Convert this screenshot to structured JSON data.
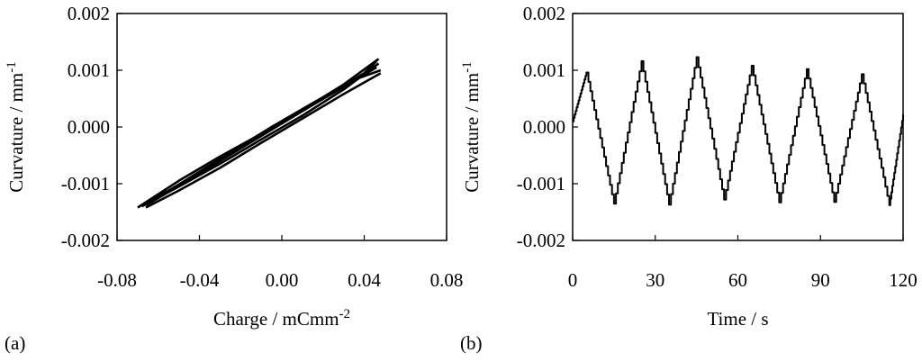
{
  "chart_data": [
    {
      "type": "line",
      "panel_label": "(a)",
      "title": "",
      "xlabel": {
        "main": "Charge / mCmm",
        "sup": "-2"
      },
      "ylabel": {
        "main": "Curvature / mm",
        "sup": "-1"
      },
      "xlim": [
        -0.08,
        0.08
      ],
      "ylim": [
        -0.002,
        0.002
      ],
      "xticks": [
        -0.08,
        -0.04,
        0.0,
        0.04,
        0.08
      ],
      "xtick_labels": [
        "-0.08",
        "-0.04",
        "0.00",
        "0.04",
        "0.08"
      ],
      "yticks": [
        -0.002,
        -0.001,
        0.0,
        0.001,
        0.002
      ],
      "ytick_labels": [
        "-0.002",
        "-0.001",
        "0.000",
        "0.001",
        "0.002"
      ],
      "grid": false,
      "legend": "none",
      "series_color": "#000000",
      "series": [
        {
          "x": [
            -0.07,
            -0.05,
            -0.03,
            -0.01,
            0.01,
            0.03,
            0.047
          ],
          "y": [
            -0.00142,
            -0.00095,
            -0.00052,
            -0.00012,
            0.0003,
            0.00075,
            0.0012
          ]
        },
        {
          "x": [
            0.047,
            0.03,
            0.01,
            -0.01,
            -0.03,
            -0.05,
            -0.068
          ],
          "y": [
            0.00112,
            0.00066,
            0.0002,
            -0.00022,
            -0.00065,
            -0.00105,
            -0.0014
          ]
        },
        {
          "x": [
            -0.066,
            -0.045,
            -0.025,
            -0.005,
            0.015,
            0.035,
            0.048
          ],
          "y": [
            -0.00138,
            -0.0009,
            -0.00045,
            0.0,
            0.00042,
            0.00083,
            0.001
          ]
        },
        {
          "x": [
            0.048,
            0.03,
            0.01,
            -0.01,
            -0.03,
            -0.05,
            -0.066
          ],
          "y": [
            0.00095,
            0.00058,
            0.00015,
            -0.00028,
            -0.00072,
            -0.00112,
            -0.00142
          ]
        },
        {
          "x": [
            -0.064,
            -0.04,
            -0.02,
            0.0,
            0.02,
            0.04,
            0.046
          ],
          "y": [
            -0.00134,
            -0.00082,
            -0.00038,
            6e-05,
            0.0005,
            0.00095,
            0.00116
          ]
        },
        {
          "x": [
            0.046,
            0.025,
            0.005,
            -0.015,
            -0.035,
            -0.055,
            -0.067
          ],
          "y": [
            0.00105,
            0.0006,
            0.00018,
            -0.00026,
            -0.0007,
            -0.00112,
            -0.00136
          ]
        }
      ]
    },
    {
      "type": "line",
      "panel_label": "(b)",
      "title": "",
      "xlabel": {
        "main": "Time / s",
        "sup": ""
      },
      "ylabel": {
        "main": "Curvature / mm",
        "sup": "-1"
      },
      "xlim": [
        0,
        120
      ],
      "ylim": [
        -0.002,
        0.002
      ],
      "xticks": [
        0,
        30,
        60,
        90,
        120
      ],
      "xtick_labels": [
        "0",
        "30",
        "60",
        "90",
        "120"
      ],
      "yticks": [
        -0.002,
        -0.001,
        0.0,
        0.001,
        0.002
      ],
      "ytick_labels": [
        "-0.002",
        "-0.001",
        "0.000",
        "0.001",
        "0.002"
      ],
      "grid": false,
      "legend": "none",
      "series_color": "#000000",
      "series": [
        {
          "x": [
            0,
            5,
            15,
            25,
            35,
            45,
            55,
            65,
            75,
            85,
            95,
            105,
            115,
            120
          ],
          "y": [
            0.0001,
            0.00096,
            -0.00135,
            0.00116,
            -0.00137,
            0.00123,
            -0.00128,
            0.00108,
            -0.00133,
            0.00102,
            -0.00132,
            0.00093,
            -0.00138,
            0.00022
          ]
        }
      ]
    }
  ]
}
